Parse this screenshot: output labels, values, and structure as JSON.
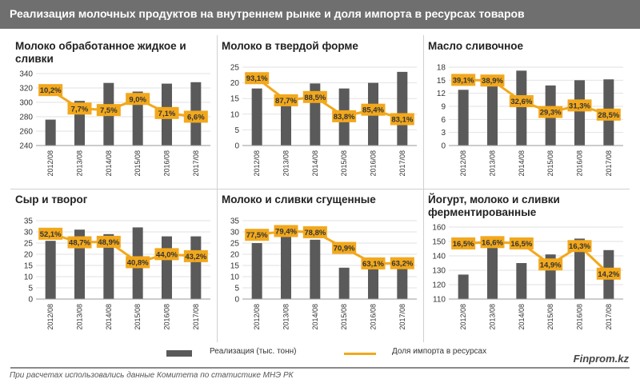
{
  "header": {
    "title": "Реализация молочных продуктов на внутреннем рынке и доля импорта в ресурсах товаров"
  },
  "legend": {
    "bar_label": "Реализация (тыс. тонн)",
    "line_label": "Доля импорта в ресурсах"
  },
  "brand": "Finprom.kz",
  "source": "При расчетах использовались данные Комитета по статистике МНЭ РК",
  "colors": {
    "bar": "#5a5a5a",
    "line": "#f2a81d",
    "label_bg": "#f2a81d",
    "grid": "#e2e2e2"
  },
  "chart_data": [
    {
      "type": "bar",
      "title": "Молоко обработанное жидкое и сливки",
      "categories": [
        "2012/08",
        "2013/08",
        "2014/08",
        "2015/08",
        "2016/08",
        "2017/08"
      ],
      "ylim": [
        240,
        340
      ],
      "yticks": [
        240,
        260,
        280,
        300,
        320,
        340
      ],
      "series": [
        {
          "name": "Реализация (тыс. тонн)",
          "type": "bar",
          "values": [
            276,
            302,
            327,
            315,
            326,
            328
          ]
        },
        {
          "name": "Доля импорта в ресурсах",
          "type": "line",
          "values": [
            10.2,
            7.7,
            7.5,
            9.0,
            7.1,
            6.6
          ],
          "labels": [
            "10,2%",
            "7,7%",
            "7,5%",
            "9,0%",
            "7,1%",
            "6,6%"
          ]
        }
      ],
      "line_range": [
        4,
        12
      ]
    },
    {
      "type": "bar",
      "title": "Молоко в твердой форме",
      "categories": [
        "2012/08",
        "2013/08",
        "2014/08",
        "2015/08",
        "2016/08",
        "2017/08"
      ],
      "ylim": [
        0,
        25
      ],
      "yticks": [
        0,
        5,
        10,
        15,
        20,
        25
      ],
      "series": [
        {
          "name": "Реализация (тыс. тонн)",
          "type": "bar",
          "values": [
            18.2,
            14.0,
            19.8,
            18.2,
            20.0,
            23.5
          ]
        },
        {
          "name": "Доля импорта в ресурсах",
          "type": "line",
          "values": [
            93.1,
            87.7,
            88.5,
            83.8,
            85.4,
            83.1
          ],
          "labels": [
            "93,1%",
            "87,7%",
            "88,5%",
            "83,8%",
            "85,4%",
            "83,1%"
          ]
        }
      ],
      "line_range": [
        79,
        95
      ]
    },
    {
      "type": "bar",
      "title": "Масло сливочное",
      "categories": [
        "2012/08",
        "2013/08",
        "2014/08",
        "2015/08",
        "2016/08",
        "2017/08"
      ],
      "ylim": [
        0,
        18
      ],
      "yticks": [
        0,
        3,
        6,
        9,
        12,
        15,
        18
      ],
      "series": [
        {
          "name": "Реализация (тыс. тонн)",
          "type": "bar",
          "values": [
            12.8,
            14.8,
            17.2,
            13.8,
            15.0,
            15.2
          ]
        },
        {
          "name": "Доля импорта в ресурсах",
          "type": "line",
          "values": [
            39.1,
            38.9,
            32.6,
            29.3,
            31.3,
            28.5
          ],
          "labels": [
            "39,1%",
            "38,9%",
            "32,6%",
            "29,3%",
            "31,3%",
            "28,5%"
          ]
        }
      ],
      "line_range": [
        22,
        42
      ]
    },
    {
      "type": "bar",
      "title": "Сыр и творог",
      "categories": [
        "2012/08",
        "2013/08",
        "2014/08",
        "2015/08",
        "2016/08",
        "2017/08"
      ],
      "ylim": [
        0,
        35
      ],
      "yticks": [
        0,
        5,
        10,
        15,
        20,
        25,
        30,
        35
      ],
      "series": [
        {
          "name": "Реализация (тыс. тонн)",
          "type": "bar",
          "values": [
            26,
            31,
            29,
            32,
            28,
            28
          ]
        },
        {
          "name": "Доля импорта в ресурсах",
          "type": "line",
          "values": [
            52.1,
            48.7,
            48.9,
            40.8,
            44.0,
            43.2
          ],
          "labels": [
            "52,1%",
            "48,7%",
            "48,9%",
            "40,8%",
            "44,0%",
            "43,2%"
          ]
        }
      ],
      "line_range": [
        30,
        56
      ]
    },
    {
      "type": "bar",
      "title": "Молоко и сливки сгущенные",
      "categories": [
        "2012/08",
        "2013/08",
        "2014/08",
        "2015/08",
        "2016/08",
        "2017/08"
      ],
      "ylim": [
        0,
        35
      ],
      "yticks": [
        0,
        5,
        10,
        15,
        20,
        25,
        30,
        35
      ],
      "series": [
        {
          "name": "Реализация (тыс. тонн)",
          "type": "bar",
          "values": [
            25,
            29,
            26.5,
            14,
            16.5,
            15.5
          ]
        },
        {
          "name": "Доля импорта в ресурсах",
          "type": "line",
          "values": [
            77.5,
            79.4,
            78.8,
            70.9,
            63.1,
            63.2
          ],
          "labels": [
            "77,5%",
            "79,4%",
            "78,8%",
            "70,9%",
            "63,1%",
            "63,2%"
          ]
        }
      ],
      "line_range": [
        50,
        83
      ]
    },
    {
      "type": "bar",
      "title": "Йогурт, молоко и сливки ферментированные",
      "categories": [
        "2012/08",
        "2013/08",
        "2014/08",
        "2015/08",
        "2016/08",
        "2017/08"
      ],
      "ylim": [
        110,
        160
      ],
      "yticks": [
        110,
        120,
        130,
        140,
        150,
        160
      ],
      "series": [
        {
          "name": "Реализация (тыс. тонн)",
          "type": "bar",
          "values": [
            127,
            150,
            135,
            141,
            152,
            144
          ]
        },
        {
          "name": "Доля импорта в ресурсах",
          "type": "line",
          "values": [
            16.5,
            16.6,
            16.5,
            14.9,
            16.3,
            14.2
          ],
          "labels": [
            "16,5%",
            "16,6%",
            "16,5%",
            "14,9%",
            "16,3%",
            "14,2%"
          ]
        }
      ],
      "line_range": [
        13,
        17.5
      ]
    }
  ]
}
